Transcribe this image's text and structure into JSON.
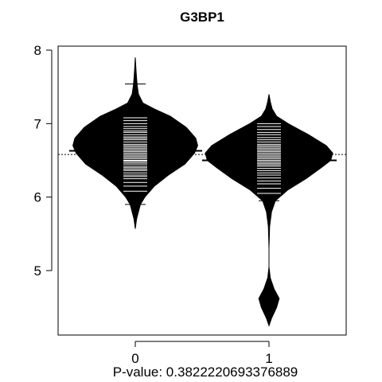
{
  "chart_data": {
    "type": "beanplot",
    "title": "G3BP1",
    "xlabel": "P-value: 0.382222069337688​9",
    "ylabel": "",
    "categories": [
      "0",
      "1"
    ],
    "y_ticks": [
      "5",
      "6",
      "7",
      "8"
    ],
    "ylim": [
      4.15,
      8.1
    ],
    "grid": false,
    "legend": "none",
    "overall_mean": 6.58,
    "series": [
      {
        "group": "0",
        "group_mean": 6.63,
        "density": [
          [
            5.57,
            0.0
          ],
          [
            5.7,
            0.02
          ],
          [
            5.8,
            0.05
          ],
          [
            5.9,
            0.08
          ],
          [
            6.0,
            0.15
          ],
          [
            6.15,
            0.3
          ],
          [
            6.3,
            0.52
          ],
          [
            6.45,
            0.78
          ],
          [
            6.6,
            0.93
          ],
          [
            6.7,
            0.98
          ],
          [
            6.8,
            0.95
          ],
          [
            6.95,
            0.8
          ],
          [
            7.1,
            0.55
          ],
          [
            7.2,
            0.3
          ],
          [
            7.28,
            0.12
          ],
          [
            7.4,
            0.05
          ],
          [
            7.52,
            0.03
          ],
          [
            7.62,
            0.02
          ],
          [
            7.75,
            0.01
          ],
          [
            7.9,
            0.0
          ]
        ],
        "observations": [
          5.9,
          6.08,
          6.15,
          6.2,
          6.25,
          6.28,
          6.3,
          6.33,
          6.36,
          6.38,
          6.4,
          6.42,
          6.45,
          6.47,
          6.49,
          6.5,
          6.52,
          6.54,
          6.56,
          6.58,
          6.6,
          6.62,
          6.64,
          6.66,
          6.68,
          6.7,
          6.72,
          6.75,
          6.78,
          6.8,
          6.82,
          6.85,
          6.88,
          6.9,
          6.93,
          6.96,
          7.0,
          7.04,
          7.08,
          7.25,
          7.54
        ]
      },
      {
        "group": "1",
        "group_mean": 6.5,
        "density": [
          [
            4.25,
            0.0
          ],
          [
            4.35,
            0.04
          ],
          [
            4.5,
            0.12
          ],
          [
            4.62,
            0.16
          ],
          [
            4.75,
            0.08
          ],
          [
            4.9,
            0.02
          ],
          [
            5.05,
            0.0
          ],
          [
            5.3,
            0.0
          ],
          [
            5.6,
            0.01
          ],
          [
            5.8,
            0.04
          ],
          [
            5.95,
            0.1
          ],
          [
            6.1,
            0.3
          ],
          [
            6.25,
            0.58
          ],
          [
            6.4,
            0.82
          ],
          [
            6.5,
            0.97
          ],
          [
            6.6,
            1.0
          ],
          [
            6.7,
            0.9
          ],
          [
            6.85,
            0.62
          ],
          [
            7.0,
            0.3
          ],
          [
            7.1,
            0.12
          ],
          [
            7.2,
            0.05
          ],
          [
            7.3,
            0.02
          ],
          [
            7.4,
            0.0
          ]
        ],
        "observations": [
          4.62,
          5.95,
          6.05,
          6.12,
          6.18,
          6.22,
          6.26,
          6.3,
          6.33,
          6.36,
          6.39,
          6.42,
          6.44,
          6.46,
          6.48,
          6.5,
          6.52,
          6.54,
          6.56,
          6.58,
          6.6,
          6.62,
          6.64,
          6.66,
          6.68,
          6.7,
          6.72,
          6.75,
          6.78,
          6.81,
          6.85,
          6.88,
          6.92,
          6.96,
          7.0
        ]
      }
    ]
  }
}
